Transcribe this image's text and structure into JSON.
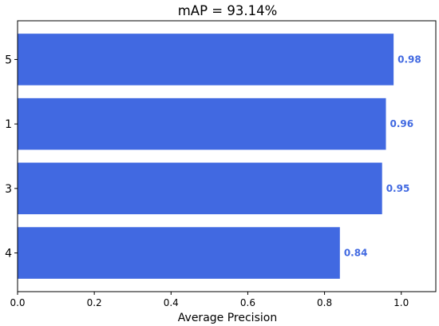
{
  "chart_data": {
    "type": "bar",
    "orientation": "horizontal",
    "title": "mAP = 93.14%",
    "xlabel": "Average Precision",
    "ylabel": "",
    "categories": [
      "5",
      "1",
      "3",
      "4"
    ],
    "values": [
      0.98,
      0.96,
      0.95,
      0.84
    ],
    "data_labels": [
      "0.98",
      "0.96",
      "0.95",
      "0.84"
    ],
    "xlim": [
      0,
      1.09
    ],
    "xticks": [
      0.0,
      0.2,
      0.4,
      0.6,
      0.8,
      1.0
    ],
    "xtick_labels": [
      "0.0",
      "0.2",
      "0.4",
      "0.6",
      "0.8",
      "1.0"
    ],
    "grid": false,
    "bar_color": "#4169E1",
    "label_color": "#4169E1"
  }
}
